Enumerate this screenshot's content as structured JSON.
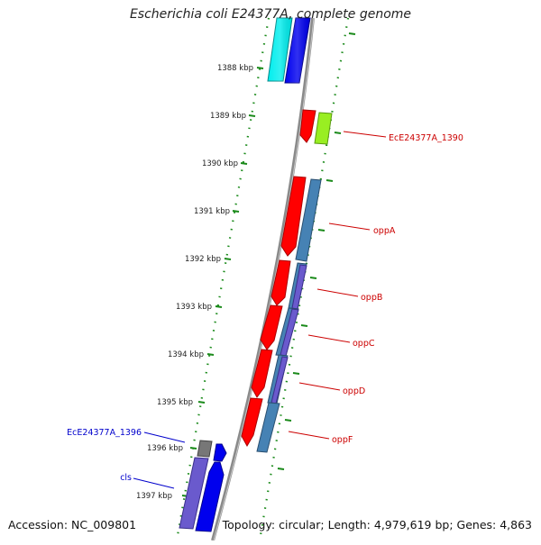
{
  "title": "Escherichia coli E24377A, complete genome",
  "footer": {
    "accession": "Accession: NC_009801",
    "summary": "Topology: circular; Length: 4,979,619 bp; Genes: 4,863"
  },
  "tick_labels": [
    "1388 kbp",
    "1389 kbp",
    "1390 kbp",
    "1391 kbp",
    "1392 kbp",
    "1393 kbp",
    "1394 kbp",
    "1395 kbp",
    "1396 kbp",
    "1397 kbp"
  ],
  "gene_labels": [
    {
      "text": "EcE24377A_1390",
      "color": "#cc0000"
    },
    {
      "text": "oppA",
      "color": "#cc0000"
    },
    {
      "text": "oppB",
      "color": "#cc0000"
    },
    {
      "text": "oppC",
      "color": "#cc0000"
    },
    {
      "text": "oppD",
      "color": "#cc0000"
    },
    {
      "text": "oppF",
      "color": "#cc0000"
    },
    {
      "text": "EcE24377A_1396",
      "color": "#0000cc"
    },
    {
      "text": "cls",
      "color": "#0000cc"
    }
  ],
  "colors": {
    "backbone": "#888888",
    "forward_red": "#ff0000",
    "forward_green": "#99ee22",
    "reverse_blue": "#0000ee",
    "reverse_cyan": "#00eeee",
    "steelblue": "#4682b4",
    "slateblue": "#6a5acd",
    "gray": "#777777",
    "dots": "#1a8a1a"
  }
}
